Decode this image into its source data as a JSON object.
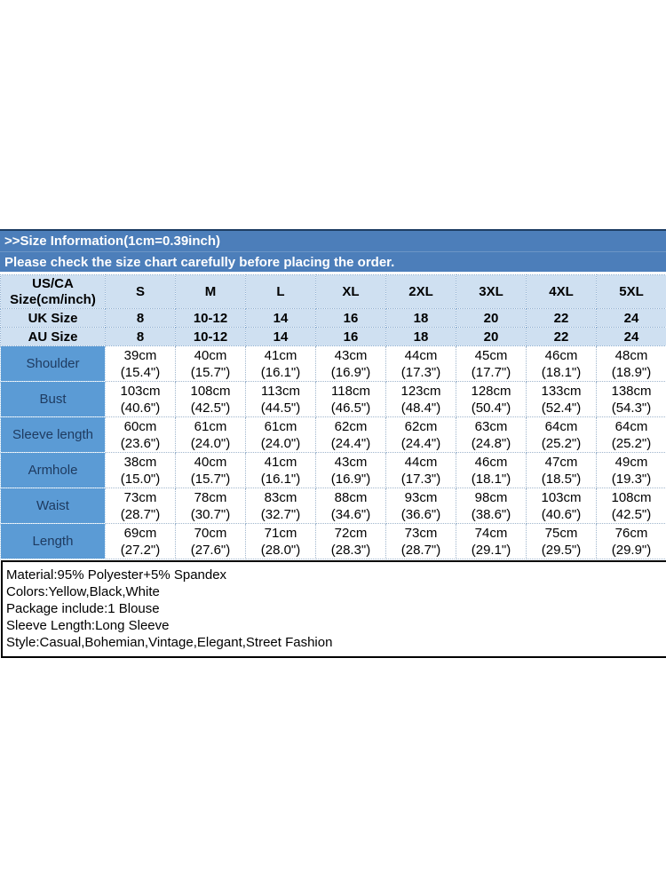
{
  "banner": {
    "title": ">>Size Information(1cm=0.39inch)",
    "subtitle": "Please check the size chart carefully before placing the order."
  },
  "table": {
    "corner_header": {
      "line1": "US/CA",
      "line2": "Size(cm/inch)"
    },
    "size_headers": [
      "S",
      "M",
      "L",
      "XL",
      "2XL",
      "3XL",
      "4XL",
      "5XL"
    ],
    "rows": [
      {
        "type": "size",
        "label": "UK Size",
        "cells": [
          "8",
          "10-12",
          "14",
          "16",
          "18",
          "20",
          "22",
          "24"
        ]
      },
      {
        "type": "size",
        "label": "AU Size",
        "cells": [
          "8",
          "10-12",
          "14",
          "16",
          "18",
          "20",
          "22",
          "24"
        ]
      },
      {
        "type": "measure",
        "label": "Shoulder",
        "cells": [
          [
            "39cm",
            "(15.4\")"
          ],
          [
            "40cm",
            "(15.7\")"
          ],
          [
            "41cm",
            "(16.1\")"
          ],
          [
            "43cm",
            "(16.9\")"
          ],
          [
            "44cm",
            "(17.3\")"
          ],
          [
            "45cm",
            "(17.7\")"
          ],
          [
            "46cm",
            "(18.1\")"
          ],
          [
            "48cm",
            "(18.9\")"
          ]
        ]
      },
      {
        "type": "measure",
        "label": "Bust",
        "cells": [
          [
            "103cm",
            "(40.6\")"
          ],
          [
            "108cm",
            "(42.5\")"
          ],
          [
            "113cm",
            "(44.5\")"
          ],
          [
            "118cm",
            "(46.5\")"
          ],
          [
            "123cm",
            "(48.4\")"
          ],
          [
            "128cm",
            "(50.4\")"
          ],
          [
            "133cm",
            "(52.4\")"
          ],
          [
            "138cm",
            "(54.3\")"
          ]
        ]
      },
      {
        "type": "measure",
        "label": "Sleeve length",
        "cells": [
          [
            "60cm",
            "(23.6\")"
          ],
          [
            "61cm",
            "(24.0\")"
          ],
          [
            "61cm",
            "(24.0\")"
          ],
          [
            "62cm",
            "(24.4\")"
          ],
          [
            "62cm",
            "(24.4\")"
          ],
          [
            "63cm",
            "(24.8\")"
          ],
          [
            "64cm",
            "(25.2\")"
          ],
          [
            "64cm",
            "(25.2\")"
          ]
        ]
      },
      {
        "type": "measure",
        "label": "Armhole",
        "cells": [
          [
            "38cm",
            "(15.0\")"
          ],
          [
            "40cm",
            "(15.7\")"
          ],
          [
            "41cm",
            "(16.1\")"
          ],
          [
            "43cm",
            "(16.9\")"
          ],
          [
            "44cm",
            "(17.3\")"
          ],
          [
            "46cm",
            "(18.1\")"
          ],
          [
            "47cm",
            "(18.5\")"
          ],
          [
            "49cm",
            "(19.3\")"
          ]
        ]
      },
      {
        "type": "measure",
        "label": "Waist",
        "cells": [
          [
            "73cm",
            "(28.7\")"
          ],
          [
            "78cm",
            "(30.7\")"
          ],
          [
            "83cm",
            "(32.7\")"
          ],
          [
            "88cm",
            "(34.6\")"
          ],
          [
            "93cm",
            "(36.6\")"
          ],
          [
            "98cm",
            "(38.6\")"
          ],
          [
            "103cm",
            "(40.6\")"
          ],
          [
            "108cm",
            "(42.5\")"
          ]
        ]
      },
      {
        "type": "measure",
        "label": "Length",
        "cells": [
          [
            "69cm",
            "(27.2\")"
          ],
          [
            "70cm",
            "(27.6\")"
          ],
          [
            "71cm",
            "(28.0\")"
          ],
          [
            "72cm",
            "(28.3\")"
          ],
          [
            "73cm",
            "(28.7\")"
          ],
          [
            "74cm",
            "(29.1\")"
          ],
          [
            "75cm",
            "(29.5\")"
          ],
          [
            "76cm",
            "(29.9\")"
          ]
        ]
      }
    ]
  },
  "details": {
    "lines": [
      "Material:95% Polyester+5% Spandex",
      "Colors:Yellow,Black,White",
      "Package include:1 Blouse",
      "Sleeve Length:Long Sleeve",
      "Style:Casual,Bohemian,Vintage,Elegant,Street Fashion"
    ]
  },
  "colors": {
    "banner_bg": "#4c7eba",
    "banner_top_border": "#1d3d63",
    "header_bg": "#cfe0f1",
    "measure_label_bg": "#5b9bd5",
    "measure_label_text": "#1e3a5f",
    "details_border": "#000000",
    "text": "#000000",
    "banner_text": "#ffffff"
  }
}
